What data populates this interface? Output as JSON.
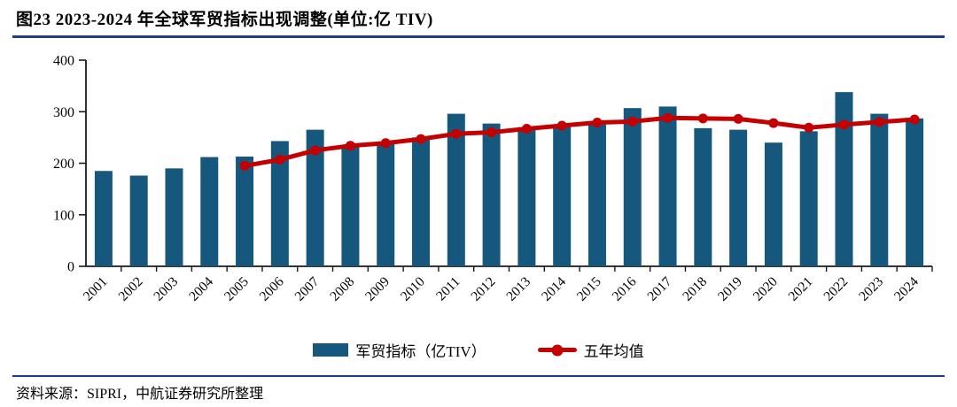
{
  "header": {
    "title": "图23 2023-2024 年全球军贸指标出现调整(单位:亿 TIV)"
  },
  "footer": {
    "source": "资料来源：SIPRI，中航证券研究所整理"
  },
  "colors": {
    "rule": "#1c3c8c",
    "axis": "#1a1a1a",
    "bar": "#16577e",
    "line": "#c40000"
  },
  "chart_data": {
    "type": "bar",
    "title": "图23 2023-2024 年全球军贸指标出现调整(单位:亿 TIV)",
    "xlabel": "",
    "ylabel": "",
    "ylim": [
      0,
      400
    ],
    "yticks": [
      0,
      100,
      200,
      300,
      400
    ],
    "grid": false,
    "legend_position": "bottom",
    "categories": [
      "2001",
      "2002",
      "2003",
      "2004",
      "2005",
      "2006",
      "2007",
      "2008",
      "2009",
      "2010",
      "2011",
      "2012",
      "2013",
      "2014",
      "2015",
      "2016",
      "2017",
      "2018",
      "2019",
      "2020",
      "2021",
      "2022",
      "2023",
      "2024"
    ],
    "series": [
      {
        "name": "军贸指标（亿TIV）",
        "kind": "bar",
        "color": "#16577e",
        "values": [
          185,
          176,
          190,
          212,
          213,
          243,
          265,
          236,
          240,
          250,
          296,
          277,
          270,
          273,
          278,
          307,
          310,
          268,
          265,
          240,
          262,
          338,
          296,
          287
        ]
      },
      {
        "name": "五年均值",
        "kind": "line",
        "color": "#c40000",
        "values": [
          null,
          null,
          null,
          null,
          195,
          207,
          225,
          234,
          239,
          247,
          257,
          260,
          267,
          273,
          279,
          281,
          288,
          287,
          286,
          278,
          269,
          275,
          280,
          285
        ]
      }
    ]
  }
}
